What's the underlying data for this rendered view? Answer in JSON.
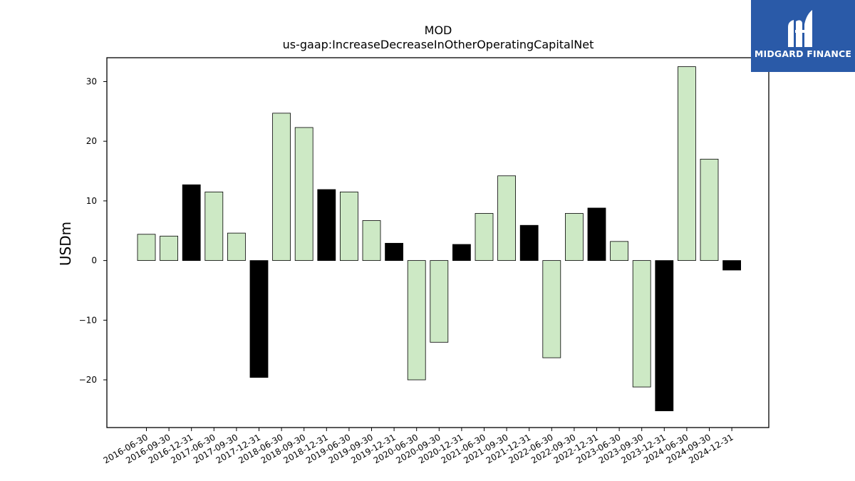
{
  "brand": {
    "name": "MIDGARD FINANCE",
    "color": "#2a5aa8"
  },
  "chart_data": {
    "type": "bar",
    "title": "MOD",
    "subtitle": "us-gaap:IncreaseDecreaseInOtherOperatingCapitalNet",
    "xlabel": "",
    "ylabel": "USDm",
    "ylim": [
      -28,
      34
    ],
    "yticks": [
      -20,
      -10,
      0,
      10,
      20,
      30
    ],
    "ytick_labels": [
      "−20",
      "−10",
      "0",
      "10",
      "20",
      "30"
    ],
    "grid": false,
    "colors": {
      "quarterly": "#cde9c5",
      "year_end": "#000000",
      "edge": "#000000"
    },
    "categories": [
      "2016-06-30",
      "2016-09-30",
      "2016-12-31",
      "2017-06-30",
      "2017-09-30",
      "2017-12-31",
      "2018-06-30",
      "2018-09-30",
      "2018-12-31",
      "2019-06-30",
      "2019-09-30",
      "2019-12-31",
      "2020-06-30",
      "2020-09-30",
      "2020-12-31",
      "2021-06-30",
      "2021-09-30",
      "2021-12-31",
      "2022-06-30",
      "2022-09-30",
      "2022-12-31",
      "2023-06-30",
      "2023-09-30",
      "2023-12-31",
      "2024-06-30",
      "2024-09-30",
      "2024-12-31"
    ],
    "values": [
      4.4,
      4.1,
      12.7,
      11.5,
      4.6,
      -19.6,
      24.7,
      22.3,
      11.9,
      11.5,
      6.7,
      2.9,
      -20.0,
      -13.7,
      2.7,
      7.9,
      14.2,
      5.9,
      -16.3,
      7.9,
      8.8,
      3.2,
      -21.2,
      -25.2,
      32.5,
      17.0,
      -1.6
    ]
  }
}
